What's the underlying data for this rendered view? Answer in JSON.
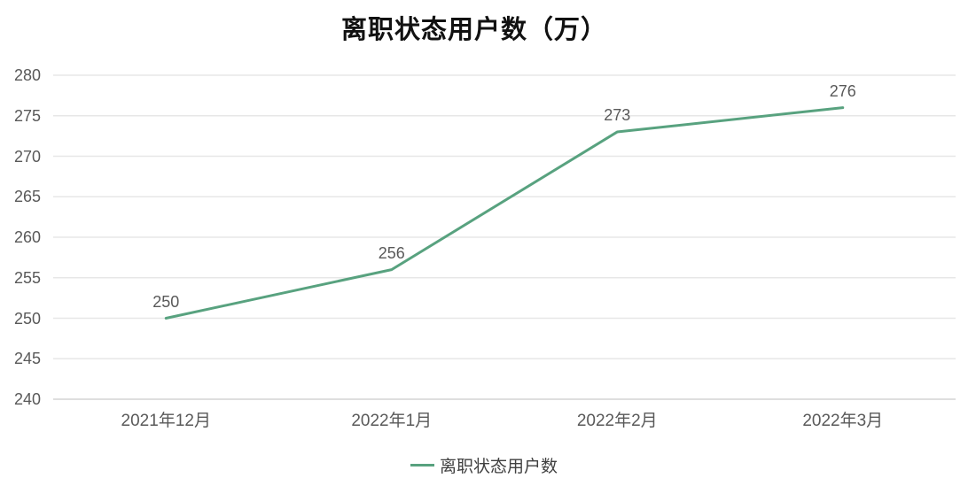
{
  "chart_data": {
    "type": "line",
    "title": "离职状态用户数（万）",
    "categories": [
      "2021年12月",
      "2022年1月",
      "2022年2月",
      "2022年3月"
    ],
    "series": [
      {
        "name": "离职状态用户数",
        "values": [
          250,
          256,
          273,
          276
        ],
        "data_labels": [
          "250",
          "256",
          "273",
          "276"
        ],
        "color": "#58a27f"
      }
    ],
    "ylim": [
      240,
      280
    ],
    "ytick_step": 5,
    "yticks": [
      240,
      245,
      250,
      255,
      260,
      265,
      270,
      275,
      280
    ],
    "grid": true,
    "legend_position": "bottom",
    "colors": {
      "grid_line": "#e7e7e7",
      "axis_line": "#d4d4d4",
      "tick_text": "#595959",
      "title_text": "#111111",
      "legend_text": "#404040",
      "background": "#ffffff"
    }
  }
}
